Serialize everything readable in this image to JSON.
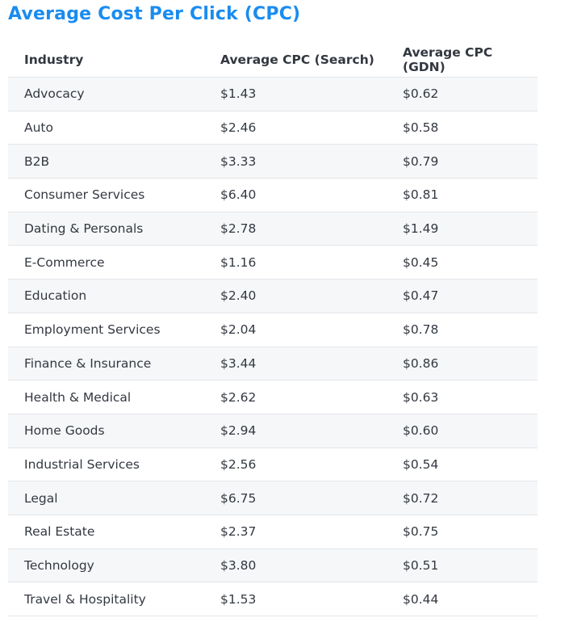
{
  "title": "Average Cost Per Click (CPC)",
  "table": {
    "headers": [
      "Industry",
      "Average CPC (Search)",
      "Average CPC (GDN)"
    ],
    "rows": [
      [
        "Advocacy",
        "$1.43",
        "$0.62"
      ],
      [
        "Auto",
        "$2.46",
        "$0.58"
      ],
      [
        "B2B",
        "$3.33",
        "$0.79"
      ],
      [
        "Consumer Services",
        "$6.40",
        "$0.81"
      ],
      [
        "Dating & Personals",
        "$2.78",
        "$1.49"
      ],
      [
        "E-Commerce",
        "$1.16",
        "$0.45"
      ],
      [
        "Education",
        "$2.40",
        "$0.47"
      ],
      [
        "Employment Services",
        "$2.04",
        "$0.78"
      ],
      [
        "Finance & Insurance",
        "$3.44",
        "$0.86"
      ],
      [
        "Health & Medical",
        "$2.62",
        "$0.63"
      ],
      [
        "Home Goods",
        "$2.94",
        "$0.60"
      ],
      [
        "Industrial Services",
        "$2.56",
        "$0.54"
      ],
      [
        "Legal",
        "$6.75",
        "$0.72"
      ],
      [
        "Real Estate",
        "$2.37",
        "$0.75"
      ],
      [
        "Technology",
        "$3.80",
        "$0.51"
      ],
      [
        "Travel & Hospitality",
        "$1.53",
        "$0.44"
      ]
    ]
  },
  "colors": {
    "title": "#1a8cf0",
    "text": "#333840",
    "row_stripe": "#f6f7f9",
    "border": "#e3e5e8"
  }
}
